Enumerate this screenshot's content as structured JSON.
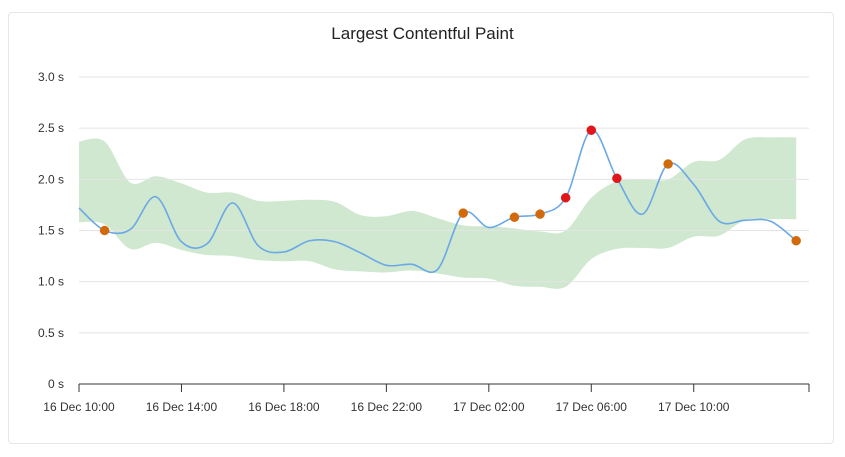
{
  "chart_data": {
    "type": "line",
    "title": "Largest Contentful Paint",
    "xlabel": "",
    "ylabel": "",
    "y_unit": "s",
    "ylim": [
      0,
      3.0
    ],
    "y_ticks": [
      0,
      0.5,
      1.0,
      1.5,
      2.0,
      2.5,
      3.0
    ],
    "y_tick_labels": [
      "0 s",
      "0.5 s",
      "1.0 s",
      "1.5 s",
      "2.0 s",
      "2.5 s",
      "3.0 s"
    ],
    "x_range": [
      "2023-12-16 10:00",
      "2023-12-17 14:30"
    ],
    "x_ticks": [
      "16 Dec 10:00",
      "16 Dec 14:00",
      "16 Dec 18:00",
      "16 Dec 22:00",
      "17 Dec 02:00",
      "17 Dec 06:00",
      "17 Dec 10:00"
    ],
    "grid": true,
    "colors": {
      "line": "#6aa8e6",
      "band": "#cfe8cf",
      "warn_point": "#d2690a",
      "alert_point": "#e0161a"
    },
    "series": [
      {
        "points": [
          [
            "16 Dec 10:00",
            1.72
          ],
          [
            "16 Dec 11:00",
            1.5
          ],
          [
            "16 Dec 12:00",
            1.51
          ],
          [
            "16 Dec 13:00",
            1.83
          ],
          [
            "16 Dec 14:00",
            1.39
          ],
          [
            "16 Dec 15:00",
            1.37
          ],
          [
            "16 Dec 16:00",
            1.77
          ],
          [
            "16 Dec 17:00",
            1.35
          ],
          [
            "16 Dec 18:00",
            1.29
          ],
          [
            "16 Dec 19:00",
            1.4
          ],
          [
            "16 Dec 20:00",
            1.39
          ],
          [
            "16 Dec 21:00",
            1.28
          ],
          [
            "16 Dec 22:00",
            1.16
          ],
          [
            "16 Dec 23:00",
            1.17
          ],
          [
            "17 Dec 00:00",
            1.12
          ],
          [
            "17 Dec 01:00",
            1.67
          ],
          [
            "17 Dec 02:00",
            1.53
          ],
          [
            "17 Dec 03:00",
            1.63
          ],
          [
            "17 Dec 04:00",
            1.66
          ],
          [
            "17 Dec 05:00",
            1.82
          ],
          [
            "17 Dec 06:00",
            2.48
          ],
          [
            "17 Dec 07:00",
            2.01
          ],
          [
            "17 Dec 08:00",
            1.66
          ],
          [
            "17 Dec 09:00",
            2.15
          ],
          [
            "17 Dec 10:00",
            1.95
          ],
          [
            "17 Dec 11:00",
            1.59
          ],
          [
            "17 Dec 12:00",
            1.6
          ],
          [
            "17 Dec 13:00",
            1.59
          ],
          [
            "17 Dec 14:00",
            1.4
          ]
        ]
      }
    ],
    "band": {
      "upper": [
        [
          "16 Dec 10:00",
          2.37
        ],
        [
          "16 Dec 11:00",
          2.37
        ],
        [
          "16 Dec 12:00",
          1.97
        ],
        [
          "16 Dec 13:00",
          2.03
        ],
        [
          "16 Dec 14:00",
          1.96
        ],
        [
          "16 Dec 15:00",
          1.87
        ],
        [
          "16 Dec 16:00",
          1.87
        ],
        [
          "16 Dec 17:00",
          1.79
        ],
        [
          "16 Dec 18:00",
          1.79
        ],
        [
          "16 Dec 19:00",
          1.8
        ],
        [
          "16 Dec 20:00",
          1.78
        ],
        [
          "16 Dec 21:00",
          1.65
        ],
        [
          "16 Dec 22:00",
          1.64
        ],
        [
          "16 Dec 23:00",
          1.69
        ],
        [
          "17 Dec 00:00",
          1.62
        ],
        [
          "17 Dec 01:00",
          1.55
        ],
        [
          "17 Dec 02:00",
          1.54
        ],
        [
          "17 Dec 03:00",
          1.52
        ],
        [
          "17 Dec 04:00",
          1.49
        ],
        [
          "17 Dec 05:00",
          1.5
        ],
        [
          "17 Dec 06:00",
          1.82
        ],
        [
          "17 Dec 07:00",
          1.98
        ],
        [
          "17 Dec 08:00",
          2.0
        ],
        [
          "17 Dec 09:00",
          2.0
        ],
        [
          "17 Dec 10:00",
          2.17
        ],
        [
          "17 Dec 11:00",
          2.19
        ],
        [
          "17 Dec 12:00",
          2.39
        ],
        [
          "17 Dec 13:00",
          2.41
        ],
        [
          "17 Dec 14:00",
          2.41
        ]
      ],
      "lower": [
        [
          "16 Dec 10:00",
          1.58
        ],
        [
          "16 Dec 11:00",
          1.56
        ],
        [
          "16 Dec 12:00",
          1.32
        ],
        [
          "16 Dec 13:00",
          1.38
        ],
        [
          "16 Dec 14:00",
          1.31
        ],
        [
          "16 Dec 15:00",
          1.26
        ],
        [
          "16 Dec 16:00",
          1.25
        ],
        [
          "16 Dec 17:00",
          1.21
        ],
        [
          "16 Dec 18:00",
          1.2
        ],
        [
          "16 Dec 19:00",
          1.2
        ],
        [
          "16 Dec 20:00",
          1.12
        ],
        [
          "16 Dec 21:00",
          1.1
        ],
        [
          "16 Dec 22:00",
          1.09
        ],
        [
          "16 Dec 23:00",
          1.11
        ],
        [
          "17 Dec 00:00",
          1.08
        ],
        [
          "17 Dec 01:00",
          1.04
        ],
        [
          "17 Dec 02:00",
          1.03
        ],
        [
          "17 Dec 03:00",
          0.96
        ],
        [
          "17 Dec 04:00",
          0.95
        ],
        [
          "17 Dec 05:00",
          0.95
        ],
        [
          "17 Dec 06:00",
          1.22
        ],
        [
          "17 Dec 07:00",
          1.32
        ],
        [
          "17 Dec 08:00",
          1.33
        ],
        [
          "17 Dec 09:00",
          1.33
        ],
        [
          "17 Dec 10:00",
          1.44
        ],
        [
          "17 Dec 11:00",
          1.45
        ],
        [
          "17 Dec 12:00",
          1.6
        ],
        [
          "17 Dec 13:00",
          1.61
        ],
        [
          "17 Dec 14:00",
          1.61
        ]
      ]
    },
    "markers": [
      {
        "x": "16 Dec 11:00",
        "y": 1.5,
        "status": "warning"
      },
      {
        "x": "17 Dec 01:00",
        "y": 1.67,
        "status": "warning"
      },
      {
        "x": "17 Dec 03:00",
        "y": 1.63,
        "status": "warning"
      },
      {
        "x": "17 Dec 04:00",
        "y": 1.66,
        "status": "warning"
      },
      {
        "x": "17 Dec 05:00",
        "y": 1.82,
        "status": "alert"
      },
      {
        "x": "17 Dec 06:00",
        "y": 2.48,
        "status": "alert"
      },
      {
        "x": "17 Dec 07:00",
        "y": 2.01,
        "status": "alert"
      },
      {
        "x": "17 Dec 09:00",
        "y": 2.15,
        "status": "warning"
      },
      {
        "x": "17 Dec 14:00",
        "y": 1.4,
        "status": "warning"
      }
    ]
  }
}
